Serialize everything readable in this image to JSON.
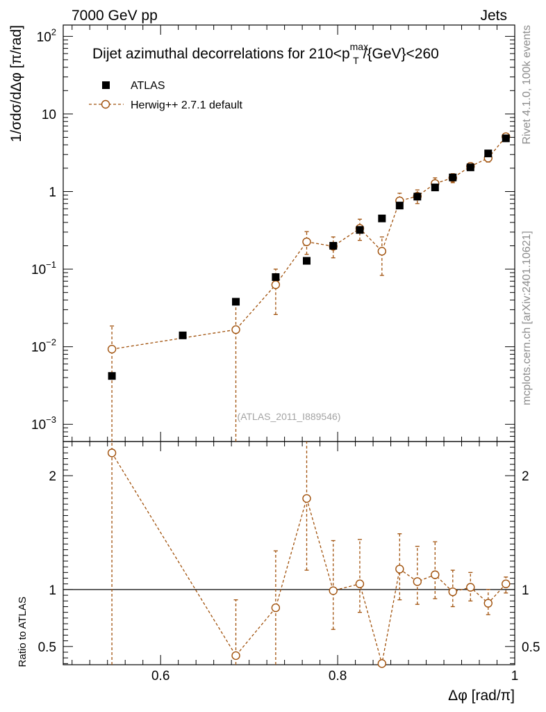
{
  "header": {
    "left": "7000 GeV pp",
    "right": "Jets"
  },
  "side_labels": {
    "rivet": "Rivet 4.1.0,  100k events",
    "mcplots": "mcplots.cern.ch [arXiv:2401.10621]"
  },
  "chart_data": [
    {
      "type": "scatter",
      "panel": "main",
      "title": "Dijet azimuthal decorrelations for 210<p_T^max/{GeV}<260",
      "title_parts": {
        "prefix": "Dijet azimuthal decorrelations for 210<p",
        "sub": "T",
        "sup": "max",
        "suffix": "/{GeV}<260"
      },
      "ylabel": "1/σdσ/dΔφ [π/rad]",
      "yscale": "log",
      "ylim": [
        0.0006,
        140
      ],
      "xlim": [
        0.49,
        1.0
      ],
      "y_tick_labels": [
        "10^-3",
        "10^-2",
        "10^-1",
        "1",
        "10",
        "10^2"
      ],
      "watermark": "(ATLAS_2011_I889546)",
      "legend_position": "top-left",
      "series": [
        {
          "name": "ATLAS",
          "style": "square",
          "color": "#000000",
          "x": [
            0.545,
            0.625,
            0.685,
            0.73,
            0.765,
            0.795,
            0.825,
            0.85,
            0.87,
            0.89,
            0.91,
            0.93,
            0.95,
            0.97,
            0.99
          ],
          "y": [
            0.0042,
            0.014,
            0.038,
            0.079,
            0.128,
            0.2,
            0.32,
            0.45,
            0.66,
            0.86,
            1.13,
            1.52,
            2.05,
            3.1,
            4.85
          ]
        },
        {
          "name": "Herwig++ 2.7.1 default",
          "style": "open-circle-dashed",
          "color": "#a0500a",
          "x": [
            0.545,
            0.685,
            0.73,
            0.765,
            0.795,
            0.825,
            0.85,
            0.87,
            0.89,
            0.91,
            0.93,
            0.95,
            0.97,
            0.99
          ],
          "y": [
            0.0093,
            0.0166,
            0.063,
            0.225,
            0.197,
            0.335,
            0.17,
            0.76,
            0.87,
            1.27,
            1.5,
            2.11,
            2.7,
            5.1
          ],
          "y_low": [
            0.0003,
            0.0003,
            0.026,
            0.155,
            0.14,
            0.235,
            0.083,
            0.6,
            0.7,
            1.05,
            1.3,
            1.9,
            2.4,
            4.8
          ],
          "y_high": [
            0.0185,
            0.035,
            0.1,
            0.305,
            0.26,
            0.44,
            0.26,
            0.95,
            1.05,
            1.5,
            1.7,
            2.35,
            3.0,
            5.5
          ]
        }
      ]
    },
    {
      "type": "line",
      "panel": "ratio",
      "ylabel": "Ratio to ATLAS",
      "xlabel": "Δφ [rad/π]",
      "ylim": [
        0.34,
        2.3
      ],
      "xlim": [
        0.49,
        1.0
      ],
      "x_ticks": [
        0.6,
        0.8,
        1.0
      ],
      "x_tick_labels": [
        "0.6",
        "0.8",
        "1"
      ],
      "y_ticks": [
        0.5,
        1,
        2
      ],
      "y_tick_labels": [
        "0.5",
        "1",
        "2"
      ],
      "reference_line": 1,
      "series": [
        {
          "name": "Herwig++ 2.7.1 default",
          "x": [
            0.545,
            0.685,
            0.73,
            0.765,
            0.795,
            0.825,
            0.85,
            0.87,
            0.89,
            0.91,
            0.93,
            0.95,
            0.97,
            0.99
          ],
          "y": [
            2.2,
            0.42,
            0.84,
            1.8,
            0.99,
            1.05,
            0.35,
            1.18,
            1.07,
            1.13,
            0.98,
            1.02,
            0.88,
            1.05
          ],
          "y_low": [
            0.3,
            0.3,
            0.3,
            1.17,
            0.65,
            0.8,
            0.3,
            0.91,
            0.87,
            0.92,
            0.85,
            0.9,
            0.78,
            0.97
          ],
          "y_high": [
            2.3,
            0.91,
            1.34,
            2.3,
            1.43,
            1.44,
            0.3,
            1.49,
            1.38,
            1.42,
            1.17,
            1.15,
            1.0,
            1.11
          ]
        }
      ]
    }
  ]
}
